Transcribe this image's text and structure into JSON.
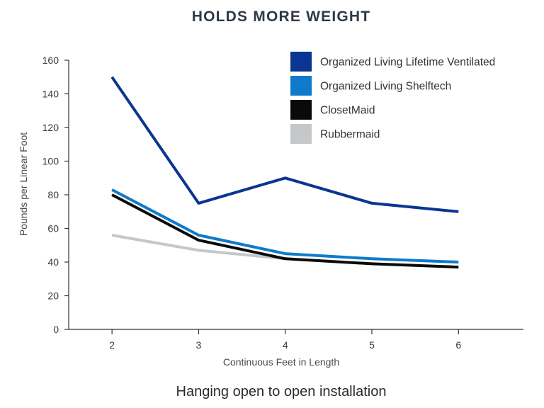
{
  "chart_data": {
    "type": "line",
    "title": "HOLDS MORE WEIGHT",
    "caption": "Hanging open to open installation",
    "xlabel": "Continuous Feet in Length",
    "ylabel": "Pounds per Linear Foot",
    "x": [
      2,
      3,
      4,
      5,
      6
    ],
    "xticks": [
      "2",
      "3",
      "4",
      "5",
      "6"
    ],
    "xlim": [
      1.5,
      6.75
    ],
    "ylim": [
      0,
      160
    ],
    "yticks": [
      "0",
      "20",
      "40",
      "60",
      "80",
      "100",
      "120",
      "140",
      "160"
    ],
    "grid": false,
    "legend_position": "top-right",
    "series": [
      {
        "name": "Rubbermaid",
        "color": "#c6c7c9",
        "values": [
          56,
          47,
          42,
          null,
          null
        ]
      },
      {
        "name": "ClosetMaid",
        "color": "#0a0a0a",
        "values": [
          80,
          53,
          42,
          39,
          37
        ]
      },
      {
        "name": "Organized Living Shelftech",
        "color": "#0f7acb",
        "values": [
          83,
          56,
          45,
          42,
          40
        ]
      },
      {
        "name": "Organized Living Lifetime Ventilated",
        "color": "#0a3592",
        "values": [
          150,
          75,
          90,
          75,
          70
        ]
      }
    ],
    "legend_order": [
      "Organized Living Lifetime Ventilated",
      "Organized Living Shelftech",
      "ClosetMaid",
      "Rubbermaid"
    ]
  }
}
